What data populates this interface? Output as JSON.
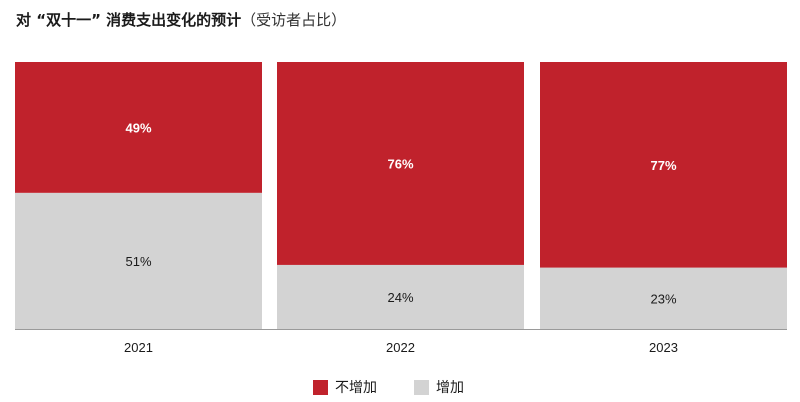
{
  "title": {
    "main": "对 “双十一” 消费支出变化的预计",
    "sub": "（受访者占比）"
  },
  "colors": {
    "not_increase": "#C0222C",
    "increase": "#D3D3D3",
    "label_on_red": "#ffffff",
    "label_on_gray": "#1a1a1a"
  },
  "chart_data": {
    "type": "bar",
    "stacked": true,
    "normalized": true,
    "categories": [
      "2021",
      "2022",
      "2023"
    ],
    "series": [
      {
        "name": "增加",
        "values": [
          51,
          24,
          23
        ],
        "labels": [
          "51%",
          "24%",
          "23%"
        ]
      },
      {
        "name": "不增加",
        "values": [
          49,
          76,
          77
        ],
        "labels": [
          "49%",
          "76%",
          "77%"
        ]
      }
    ],
    "ylim": [
      0,
      100
    ],
    "grid": false,
    "legend_position": "bottom-center"
  },
  "legend": [
    {
      "label": "不增加",
      "color_key": "not_increase"
    },
    {
      "label": "增加",
      "color_key": "increase"
    }
  ]
}
